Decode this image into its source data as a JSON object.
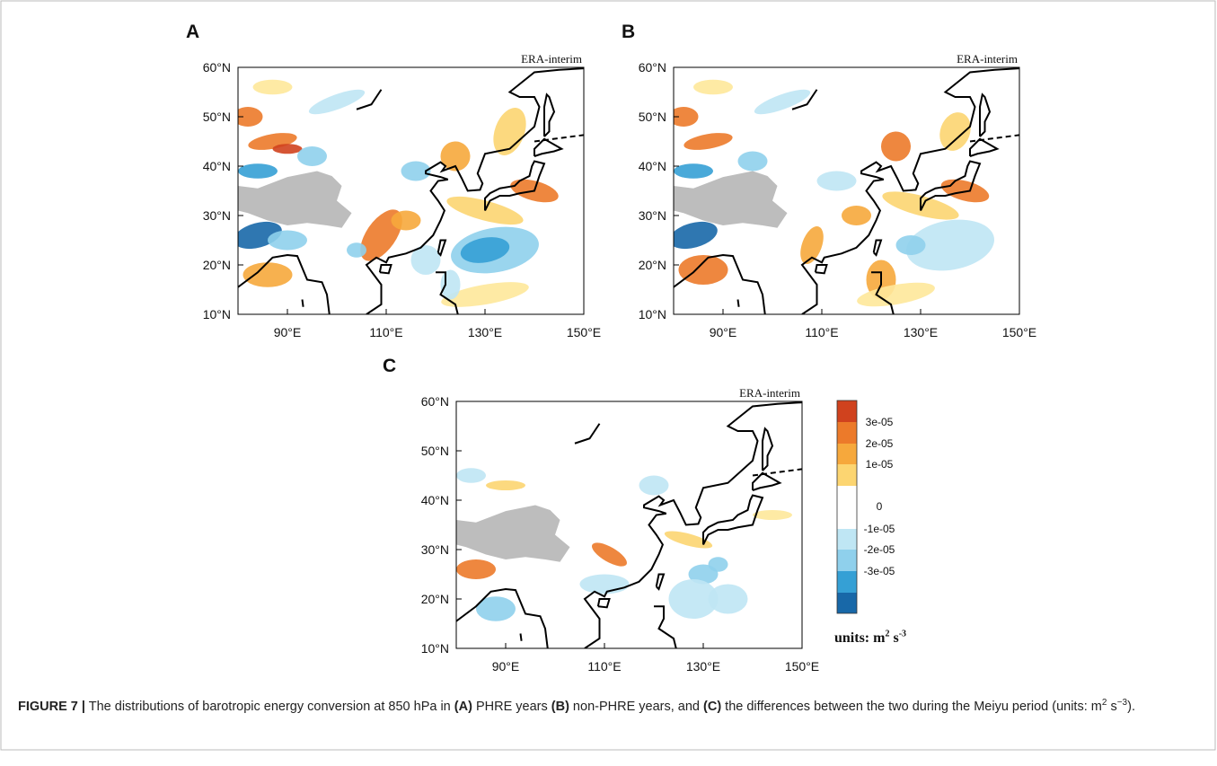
{
  "panels": [
    {
      "label": "A",
      "source": "ERA-interim"
    },
    {
      "label": "B",
      "source": "ERA-interim"
    },
    {
      "label": "C",
      "source": "ERA-interim"
    }
  ],
  "lat_ticks": [
    "60°N",
    "50°N",
    "40°N",
    "30°N",
    "20°N",
    "10°N"
  ],
  "lon_ticks": [
    "90°E",
    "110°E",
    "130°E",
    "150°E"
  ],
  "colorbar": {
    "labels": [
      "3e-05",
      "2e-05",
      "1e-05",
      "0",
      "-1e-05",
      "-2e-05",
      "-3e-05"
    ],
    "units": [
      "units: m",
      "2",
      " s",
      "-3"
    ]
  },
  "caption": [
    "FIGURE 7 |",
    " The distributions of barotropic energy conversion at 850 hPa in ",
    "(A)",
    " PHRE years ",
    "(B)",
    " non-PHRE years, and ",
    "(C)",
    " the differences between the two during the Meiyu period (units: m",
    "2",
    " s",
    "−3",
    ")."
  ]
}
